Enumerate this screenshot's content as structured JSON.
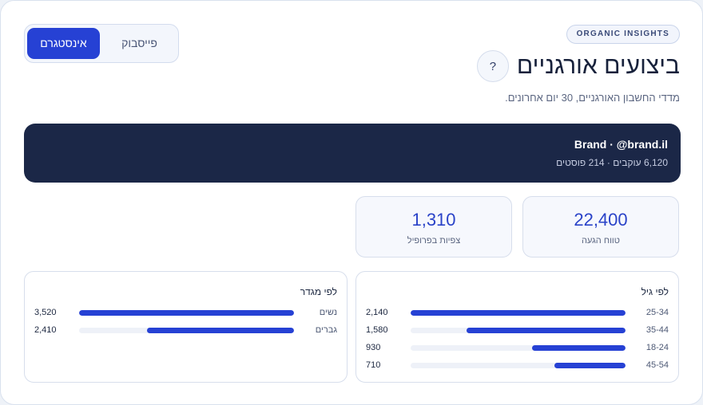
{
  "header": {
    "badge": "ORGANIC INSIGHTS",
    "title": "ביצועים אורגניים",
    "help_icon": "?",
    "subtitle": "מדדי החשבון האורגניים, 30 יום אחרונים."
  },
  "platform_switch": {
    "options": [
      {
        "label": "אינסטגרם",
        "active": true
      },
      {
        "label": "פייסבוק",
        "active": false
      }
    ]
  },
  "account": {
    "name": "Brand · @brand.il",
    "stats": "6,120 עוקבים · 214 פוסטים"
  },
  "kpis": [
    {
      "value": "22,400",
      "label": "טווח הגעה"
    },
    {
      "value": "1,310",
      "label": "צפיות בפרופיל"
    }
  ],
  "age_breakdown": {
    "title": "לפי גיל",
    "rows": [
      {
        "label": "25-34",
        "value": "2,140",
        "fraction": 1.0
      },
      {
        "label": "35-44",
        "value": "1,580",
        "fraction": 0.738
      },
      {
        "label": "18-24",
        "value": "930",
        "fraction": 0.435
      },
      {
        "label": "45-54",
        "value": "710",
        "fraction": 0.332
      }
    ]
  },
  "gender_breakdown": {
    "title": "לפי מגדר",
    "rows": [
      {
        "label": "נשים",
        "value": "3,520",
        "fraction": 1.0
      },
      {
        "label": "גברים",
        "value": "2,410",
        "fraction": 0.685
      }
    ]
  },
  "colors": {
    "accent": "#2641d4",
    "banner": "#1b2747",
    "track": "#eef1f8"
  }
}
